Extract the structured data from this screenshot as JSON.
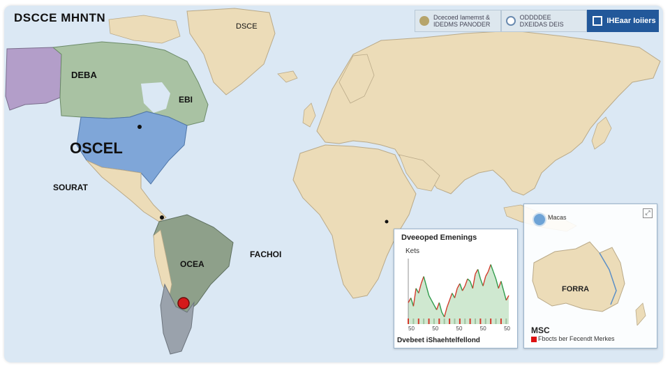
{
  "title": "DSCCE MHNTN",
  "top_bar": {
    "item1": "Dcecoed Iamemst &\nIDEDMS PANODER",
    "item2": "ODDDDEE\nDXEIDAS DEIS",
    "item3": "IHEaar Ioiiers"
  },
  "map_labels": {
    "canada": "DEBA",
    "greenland": "DSCE",
    "east_canada": "EBI",
    "usa": "OSCEL",
    "central_america": "SOURAT",
    "atlantic": "FACHOI",
    "south_america": "OCEA"
  },
  "panel_markets": {
    "title": "Dveeoped Emenings",
    "subtitle": "Kets",
    "footer": "Dvebeet iShaehtelfellond",
    "x_ticks": [
      "50",
      "50",
      "50",
      "50",
      "50"
    ],
    "chart_data": {
      "type": "line",
      "title": "Dveeoped Emenings",
      "x": [
        0,
        1,
        2,
        3,
        4,
        5,
        6,
        7,
        8,
        9,
        10,
        11,
        12,
        13,
        14,
        15,
        16,
        17,
        18,
        19,
        20,
        21,
        22,
        23,
        24,
        25,
        26,
        27,
        28,
        29,
        30,
        31,
        32,
        33,
        34,
        35,
        36,
        37,
        38,
        39
      ],
      "values": [
        58,
        62,
        55,
        70,
        66,
        74,
        80,
        72,
        64,
        60,
        56,
        52,
        58,
        50,
        46,
        54,
        60,
        66,
        62,
        70,
        74,
        68,
        72,
        78,
        76,
        70,
        82,
        86,
        78,
        72,
        80,
        84,
        90,
        84,
        78,
        70,
        76,
        68,
        60,
        64
      ]
    }
  },
  "panel_oceania": {
    "title": "Macas",
    "label": "FORRA",
    "footer_title": "MSC",
    "footer": "Fbocts ber Fecendt Merkes"
  },
  "colors": {
    "ocean": "#dbe8f4",
    "land": "#ecdcb8",
    "canada": "#a9c2a3",
    "alaska": "#b39ec9",
    "usa": "#7fa6d8",
    "south_america": "#8ea08a",
    "patagonia": "#9aa2ac",
    "top_bar_dark": "#22589a"
  }
}
